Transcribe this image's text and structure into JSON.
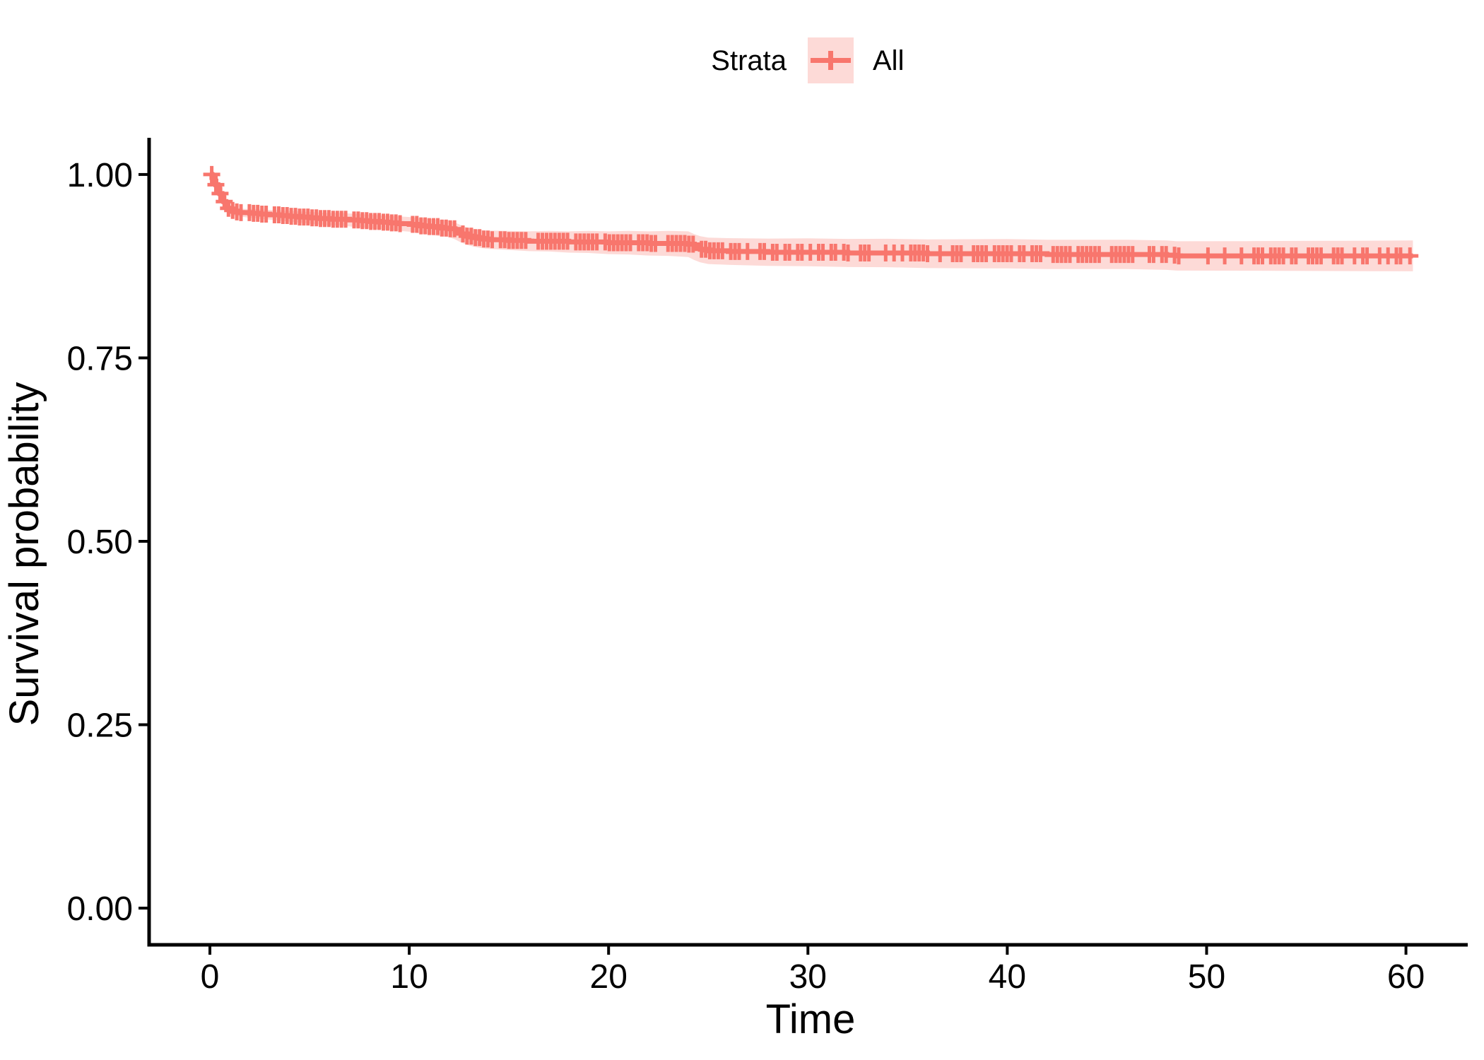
{
  "chart_data": {
    "type": "line",
    "subtype": "kaplan_meier_survival_curve",
    "title": "",
    "legend_title": "Strata",
    "legend_position": "top-center",
    "xlabel": "Time",
    "ylabel": "Survival probability",
    "xlim": [
      -3.05,
      63.1
    ],
    "ylim": [
      -0.05,
      1.05
    ],
    "grid": false,
    "x_axis": {
      "tick_values": [
        0,
        10,
        20,
        30,
        40,
        50,
        60
      ],
      "tick_labels": [
        "0",
        "10",
        "20",
        "30",
        "40",
        "50",
        "60"
      ]
    },
    "y_axis": {
      "tick_values": [
        0,
        0.25,
        0.5,
        0.75,
        1
      ],
      "tick_labels": [
        "0.00",
        "0.25",
        "0.50",
        "0.75",
        "1.00"
      ]
    },
    "colors": {
      "stratum": "#F8766D",
      "ribbon_fill": "rgba(248,118,109,0.27)",
      "axis": "#000000",
      "text": "#000000"
    },
    "series": [
      {
        "name": "All",
        "color": "#F8766D",
        "step": true,
        "points": [
          [
            0,
            1.0
          ],
          [
            0.1,
            0.996
          ],
          [
            0.2,
            0.991
          ],
          [
            0.3,
            0.986
          ],
          [
            0.4,
            0.98
          ],
          [
            0.5,
            0.974
          ],
          [
            0.6,
            0.968
          ],
          [
            0.7,
            0.963
          ],
          [
            0.8,
            0.958
          ],
          [
            0.9,
            0.954
          ],
          [
            1.0,
            0.951
          ],
          [
            1.2,
            0.949
          ],
          [
            1.5,
            0.948
          ],
          [
            2.0,
            0.947
          ],
          [
            2.5,
            0.946
          ],
          [
            3.0,
            0.945
          ],
          [
            3.5,
            0.944
          ],
          [
            4.0,
            0.943
          ],
          [
            4.5,
            0.942
          ],
          [
            5.0,
            0.941
          ],
          [
            5.5,
            0.94
          ],
          [
            6.0,
            0.939
          ],
          [
            6.5,
            0.939
          ],
          [
            7.0,
            0.938
          ],
          [
            7.5,
            0.937
          ],
          [
            8.0,
            0.936
          ],
          [
            8.5,
            0.935
          ],
          [
            9.0,
            0.934
          ],
          [
            9.5,
            0.933
          ],
          [
            10.0,
            0.932
          ],
          [
            10.5,
            0.93
          ],
          [
            11.0,
            0.929
          ],
          [
            11.5,
            0.927
          ],
          [
            12.0,
            0.926
          ],
          [
            12.3,
            0.923
          ],
          [
            12.6,
            0.919
          ],
          [
            12.9,
            0.916
          ],
          [
            13.2,
            0.914
          ],
          [
            13.6,
            0.912
          ],
          [
            14.0,
            0.911
          ],
          [
            15.0,
            0.91
          ],
          [
            16.0,
            0.909
          ],
          [
            17.0,
            0.909
          ],
          [
            18.0,
            0.908
          ],
          [
            19.0,
            0.908
          ],
          [
            20.0,
            0.907
          ],
          [
            21.0,
            0.907
          ],
          [
            22.0,
            0.906
          ],
          [
            23.0,
            0.906
          ],
          [
            24.0,
            0.905
          ],
          [
            24.3,
            0.901
          ],
          [
            24.6,
            0.898
          ],
          [
            25.0,
            0.896
          ],
          [
            26.0,
            0.895
          ],
          [
            28.0,
            0.894
          ],
          [
            30.0,
            0.894
          ],
          [
            32.0,
            0.893
          ],
          [
            34.0,
            0.893
          ],
          [
            36.0,
            0.892
          ],
          [
            38.0,
            0.892
          ],
          [
            40.0,
            0.892
          ],
          [
            42.0,
            0.891
          ],
          [
            44.0,
            0.891
          ],
          [
            46.0,
            0.891
          ],
          [
            48.0,
            0.89
          ],
          [
            48.5,
            0.889
          ],
          [
            52.0,
            0.889
          ],
          [
            56.0,
            0.889
          ],
          [
            58.0,
            0.889
          ],
          [
            60.35,
            0.889
          ]
        ],
        "censoring": {
          "start": 0.3,
          "end": 59.85,
          "step": 0.21,
          "extra": [
            0.09,
            60.2
          ],
          "gap_ranges": [
            [
              1.6,
              1.9
            ],
            [
              3.0,
              3.2
            ],
            [
              6.85,
              7.15
            ],
            [
              9.75,
              10.0
            ],
            [
              12.3,
              12.6
            ],
            [
              14.2,
              14.45
            ],
            [
              16.05,
              16.35
            ],
            [
              18.0,
              18.25
            ],
            [
              19.45,
              19.75
            ],
            [
              21.1,
              21.35
            ],
            [
              22.55,
              22.85
            ],
            [
              24.3,
              24.6
            ],
            [
              25.75,
              26.0
            ],
            [
              27.15,
              27.45
            ],
            [
              27.95,
              28.2
            ],
            [
              28.5,
              28.8
            ],
            [
              29.75,
              30.0
            ],
            [
              30.85,
              31.1
            ],
            [
              31.4,
              31.65
            ],
            [
              33.55,
              33.85
            ],
            [
              34.45,
              34.7
            ],
            [
              36.15,
              36.45
            ],
            [
              36.95,
              37.2
            ],
            [
              37.85,
              38.15
            ],
            [
              39.05,
              39.3
            ],
            [
              40.95,
              41.25
            ],
            [
              41.85,
              42.1
            ],
            [
              43.25,
              43.55
            ],
            [
              44.75,
              45.05
            ],
            [
              46.45,
              46.75
            ],
            [
              47.35,
              47.6
            ],
            [
              48.65,
              49.95
            ],
            [
              51.25,
              51.55
            ],
            [
              52.1,
              52.35
            ],
            [
              52.9,
              53.15
            ],
            [
              53.9,
              54.15
            ],
            [
              54.65,
              54.95
            ],
            [
              56.05,
              56.35
            ],
            [
              56.9,
              57.15
            ],
            [
              57.45,
              57.75
            ],
            [
              58.25,
              58.5
            ],
            [
              58.8,
              59.0
            ],
            [
              59.2,
              59.4
            ]
          ]
        },
        "ci_halfwidth": [
          [
            0,
            0.003
          ],
          [
            2,
            0.006
          ],
          [
            5,
            0.008
          ],
          [
            10,
            0.01
          ],
          [
            13,
            0.012
          ],
          [
            17,
            0.014
          ],
          [
            21,
            0.016
          ],
          [
            25,
            0.018
          ],
          [
            30,
            0.019
          ],
          [
            40,
            0.02
          ],
          [
            50,
            0.02
          ],
          [
            60.35,
            0.021
          ]
        ]
      }
    ]
  }
}
